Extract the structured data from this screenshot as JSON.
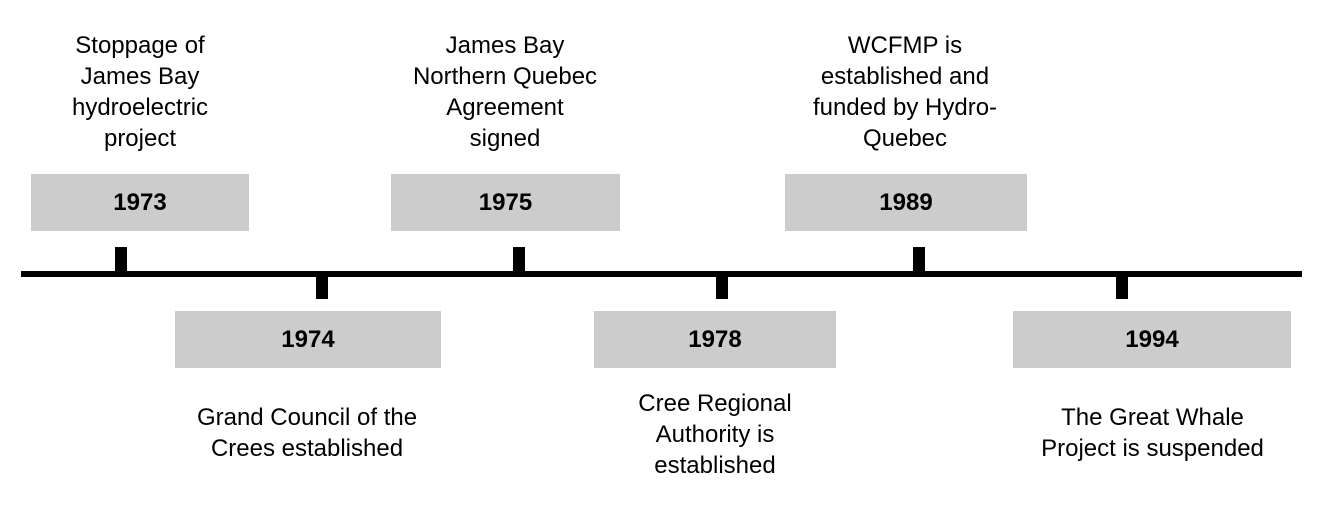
{
  "events": [
    {
      "year": "1973",
      "text": "Stoppage of\nJames Bay\nhydroelectric\nproject"
    },
    {
      "year": "1974",
      "text": "Grand Council of the\nCrees established"
    },
    {
      "year": "1975",
      "text": "James Bay\nNorthern Quebec\nAgreement\nsigned"
    },
    {
      "year": "1978",
      "text": "Cree Regional\nAuthority is\nestablished"
    },
    {
      "year": "1989",
      "text": "WCFMP is\nestablished and\nfunded by Hydro-\nQuebec"
    },
    {
      "year": "1994",
      "text": "The Great Whale\nProject is suspended"
    }
  ]
}
